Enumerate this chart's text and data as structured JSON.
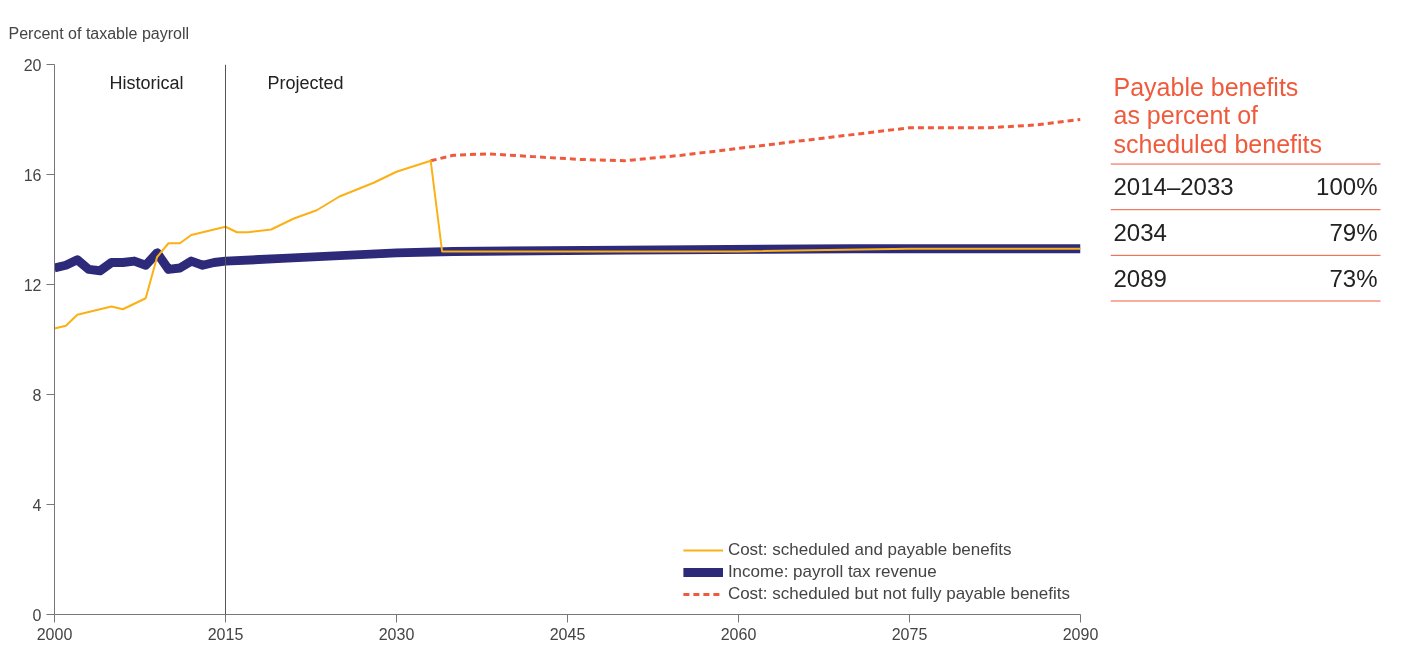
{
  "chart_data": [
    {
      "type": "line",
      "ylabel": "Percent of taxable payroll",
      "xlim": [
        2000,
        2090
      ],
      "xticks": [
        2000,
        2015,
        2030,
        2045,
        2060,
        2075,
        2090
      ],
      "ylim": [
        0,
        20
      ],
      "yticks": [
        0,
        4,
        8,
        12,
        16,
        20
      ],
      "grid": false,
      "legend": "bottom right",
      "ref_lines": [
        {
          "axis": "x",
          "value": 2015,
          "color": "#555555"
        }
      ],
      "annotations": [
        "Historical",
        "Projected"
      ],
      "series": [
        {
          "name": "Cost: scheduled and payable benefits",
          "color": "#fbb116",
          "line_style": "solid",
          "x": [
            2000,
            2001,
            2002,
            2003,
            2004,
            2005,
            2006,
            2007,
            2008,
            2009,
            2010,
            2011,
            2012,
            2013,
            2014,
            2015,
            2016,
            2017,
            2019,
            2021,
            2023,
            2025,
            2028,
            2030,
            2033,
            2034,
            2045,
            2060,
            2075,
            2090
          ],
          "values": [
            10.4,
            10.5,
            10.9,
            11.0,
            11.1,
            11.2,
            11.1,
            11.3,
            11.5,
            13.0,
            13.5,
            13.5,
            13.8,
            13.9,
            14.0,
            14.1,
            13.9,
            13.9,
            14.0,
            14.4,
            14.7,
            15.2,
            15.7,
            16.1,
            16.5,
            13.2,
            13.2,
            13.2,
            13.3,
            13.3
          ]
        },
        {
          "name": "Income: payroll tax revenue",
          "color": "#2e2a7a",
          "line_style": "solid",
          "x": [
            2000,
            2001,
            2002,
            2003,
            2004,
            2005,
            2006,
            2007,
            2008,
            2009,
            2010,
            2011,
            2012,
            2013,
            2014,
            2015,
            2020,
            2025,
            2030,
            2035,
            2050,
            2070,
            2090
          ],
          "values": [
            12.6,
            12.7,
            12.9,
            12.55,
            12.5,
            12.8,
            12.8,
            12.85,
            12.7,
            13.15,
            12.55,
            12.6,
            12.85,
            12.7,
            12.8,
            12.85,
            12.95,
            13.05,
            13.15,
            13.2,
            13.25,
            13.3,
            13.3
          ]
        },
        {
          "name": "Cost: scheduled but not fully payable benefits",
          "color": "#f05a3c",
          "line_style": "dashed",
          "x": [
            2033,
            2035,
            2038,
            2042,
            2046,
            2050,
            2055,
            2060,
            2065,
            2070,
            2075,
            2082,
            2086,
            2090
          ],
          "values": [
            16.5,
            16.7,
            16.75,
            16.65,
            16.55,
            16.5,
            16.7,
            16.95,
            17.2,
            17.45,
            17.7,
            17.7,
            17.8,
            18.0
          ]
        }
      ]
    },
    {
      "type": "other",
      "title": "Payable benefits\nas percent of\nscheduled benefits",
      "color": "#f05a3c",
      "categories": [
        "2014–2033",
        "2034",
        "2089"
      ],
      "value_labels": [
        "100%",
        "79%",
        "73%"
      ]
    }
  ]
}
